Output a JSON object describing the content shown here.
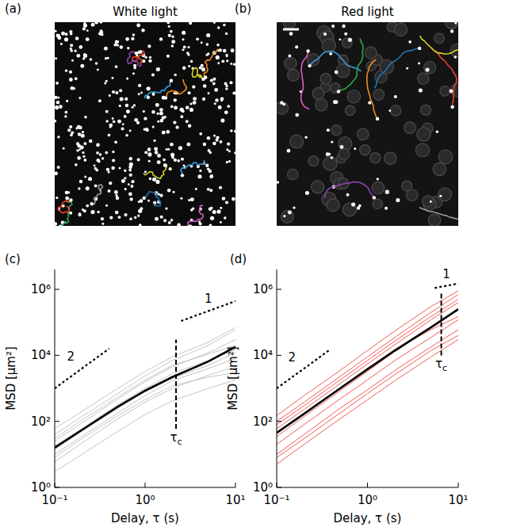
{
  "images": [
    {
      "panel": "(a)",
      "title": "White light"
    },
    {
      "panel": "(b)",
      "title": "Red light"
    }
  ],
  "chart_data": [
    {
      "type": "line",
      "panel": "(c)",
      "x_label": "Delay, τ (s)",
      "y_label": "MSD [μm²]",
      "log": true,
      "xlim": [
        0.1,
        10
      ],
      "ylim": [
        1,
        4000000
      ],
      "xticks": [
        {
          "value": 0.1,
          "label": "10⁻¹"
        },
        {
          "value": 1,
          "label": "10⁰"
        },
        {
          "value": 10,
          "label": "10¹"
        }
      ],
      "yticks": [
        {
          "value": 1,
          "label": "10⁰"
        },
        {
          "value": 100,
          "label": "10²"
        },
        {
          "value": 10000,
          "label": "10⁴"
        },
        {
          "value": 1000000,
          "label": "10⁶"
        }
      ],
      "x": [
        0.1,
        0.2,
        0.5,
        1,
        2,
        5,
        10
      ],
      "series": [
        {
          "color": "#bdbdbd",
          "values": [
            3,
            10,
            50,
            160,
            420,
            1000,
            1800
          ]
        },
        {
          "color": "#bdbdbd",
          "values": [
            6,
            22,
            120,
            380,
            1000,
            2500,
            4500
          ]
        },
        {
          "color": "#bdbdbd",
          "values": [
            10,
            35,
            180,
            600,
            1700,
            4000,
            8000
          ]
        },
        {
          "color": "#bdbdbd",
          "values": [
            18,
            60,
            320,
            1000,
            2800,
            7000,
            15000
          ]
        },
        {
          "color": "#bdbdbd",
          "values": [
            25,
            90,
            480,
            1600,
            4500,
            12000,
            30000
          ]
        },
        {
          "color": "#bdbdbd",
          "values": [
            40,
            140,
            700,
            2400,
            7000,
            20000,
            60000
          ]
        },
        {
          "color": "#bdbdbd",
          "values": [
            60,
            200,
            1000,
            3200,
            9000,
            25000,
            70000
          ]
        },
        {
          "color": "#bdbdbd",
          "values": [
            8,
            30,
            150,
            450,
            1200,
            2200,
            3000
          ]
        },
        {
          "color": "#bdbdbd",
          "values": [
            14,
            50,
            250,
            800,
            2000,
            5000,
            12000
          ]
        },
        {
          "color": "#bdbdbd",
          "values": [
            30,
            110,
            550,
            1800,
            5000,
            11000,
            20000
          ]
        },
        {
          "color": "#000000",
          "values": [
            16,
            55,
            280,
            850,
            2200,
            6500,
            18000
          ]
        }
      ],
      "guides": [
        {
          "label": "2",
          "x": [
            0.1,
            0.4
          ],
          "y": [
            1000,
            16000
          ]
        },
        {
          "label": "1",
          "x": [
            2.5,
            10
          ],
          "y": [
            110000,
            440000
          ]
        }
      ],
      "tau_c": {
        "label": "τc",
        "value": 2.2,
        "range": [
          60,
          30000
        ]
      }
    },
    {
      "type": "line",
      "panel": "(d)",
      "x_label": "Delay, τ (s)",
      "y_label": "MSD [μm²]",
      "log": true,
      "xlim": [
        0.1,
        10
      ],
      "ylim": [
        1,
        4000000
      ],
      "xticks": [
        {
          "value": 0.1,
          "label": "10⁻¹"
        },
        {
          "value": 1,
          "label": "10⁰"
        },
        {
          "value": 10,
          "label": "10¹"
        }
      ],
      "yticks": [
        {
          "value": 1,
          "label": "10⁰"
        },
        {
          "value": 100,
          "label": "10²"
        },
        {
          "value": 10000,
          "label": "10⁴"
        },
        {
          "value": 1000000,
          "label": "10⁶"
        }
      ],
      "x": [
        0.1,
        0.2,
        0.5,
        1,
        2,
        5,
        10
      ],
      "series": [
        {
          "color": "#ee4a43",
          "values": [
            5,
            20,
            120,
            450,
            1700,
            9000,
            30000
          ]
        },
        {
          "color": "#ee4a43",
          "values": [
            10,
            40,
            250,
            900,
            3500,
            18000,
            60000
          ]
        },
        {
          "color": "#ee4a43",
          "values": [
            20,
            80,
            480,
            1800,
            7000,
            35000,
            120000
          ]
        },
        {
          "color": "#ee4a43",
          "values": [
            35,
            140,
            850,
            3300,
            13000,
            70000,
            250000
          ]
        },
        {
          "color": "#ee4a43",
          "values": [
            60,
            230,
            1400,
            5500,
            21000,
            120000,
            400000
          ]
        },
        {
          "color": "#ee4a43",
          "values": [
            100,
            380,
            2300,
            9000,
            35000,
            200000,
            700000
          ]
        },
        {
          "color": "#ee4a43",
          "values": [
            150,
            600,
            3500,
            14000,
            55000,
            300000,
            900000
          ]
        },
        {
          "color": "#ee4a43",
          "values": [
            8,
            30,
            180,
            700,
            2600,
            14000,
            40000
          ]
        },
        {
          "color": "#ee4a43",
          "values": [
            45,
            170,
            1000,
            4000,
            15000,
            60000,
            150000
          ]
        },
        {
          "color": "#ee4a43",
          "values": [
            80,
            300,
            1800,
            7000,
            27000,
            150000,
            500000
          ]
        },
        {
          "color": "#000000",
          "values": [
            45,
            170,
            1000,
            3800,
            14000,
            70000,
            250000
          ]
        }
      ],
      "guides": [
        {
          "label": "2",
          "x": [
            0.1,
            0.38
          ],
          "y": [
            1000,
            14400
          ]
        },
        {
          "label": "1",
          "x": [
            5.5,
            10
          ],
          "y": [
            1100000,
            1500000
          ]
        }
      ],
      "tau_c": {
        "label": "τc",
        "value": 6.5,
        "range": [
          10000,
          800000
        ]
      }
    }
  ]
}
